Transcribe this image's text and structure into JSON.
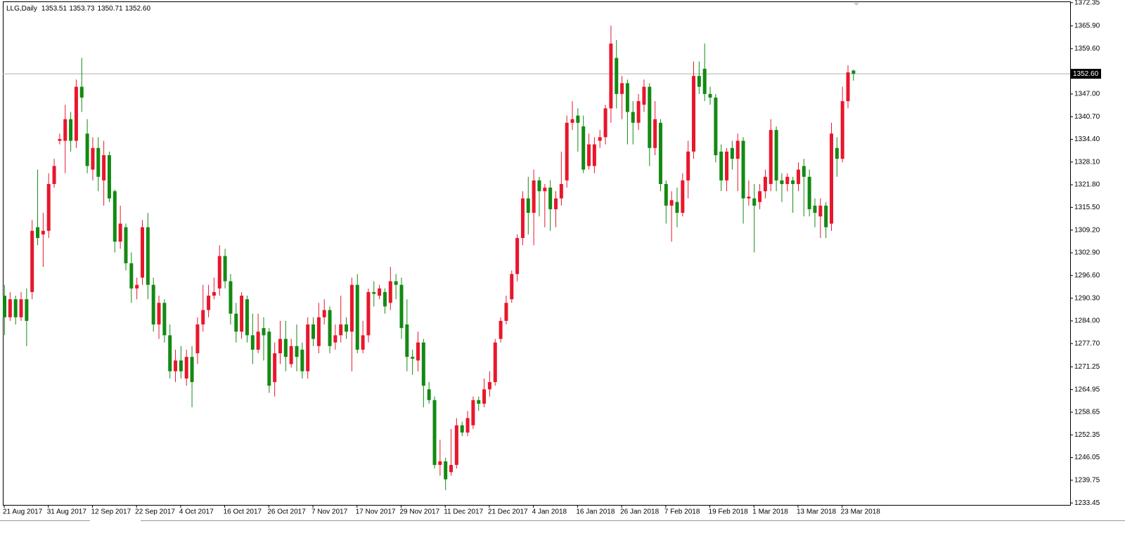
{
  "chart_data": {
    "type": "candlestick",
    "title": "LLG,Daily",
    "header_values": [
      "1353.51",
      "1353.73",
      "1350.71",
      "1352.60"
    ],
    "categories": [
      "21 Aug 2017",
      null,
      null,
      null,
      null,
      null,
      null,
      null,
      "31 Aug 2017",
      null,
      null,
      null,
      null,
      null,
      null,
      null,
      "12 Sep 2017",
      null,
      null,
      null,
      null,
      null,
      null,
      null,
      "22 Sep 2017",
      null,
      null,
      null,
      null,
      null,
      null,
      null,
      "4 Oct 2017",
      null,
      null,
      null,
      null,
      null,
      null,
      null,
      "16 Oct 2017",
      null,
      null,
      null,
      null,
      null,
      null,
      null,
      "26 Oct 2017",
      null,
      null,
      null,
      null,
      null,
      null,
      null,
      "7 Nov 2017",
      null,
      null,
      null,
      null,
      null,
      null,
      null,
      "17 Nov 2017",
      null,
      null,
      null,
      null,
      null,
      null,
      null,
      "29 Nov 2017",
      null,
      null,
      null,
      null,
      null,
      null,
      null,
      "11 Dec 2017",
      null,
      null,
      null,
      null,
      null,
      null,
      null,
      "21 Dec 2017",
      null,
      null,
      null,
      null,
      null,
      null,
      null,
      "4 Jan 2018",
      null,
      null,
      null,
      null,
      null,
      null,
      null,
      "16 Jan 2018",
      null,
      null,
      null,
      null,
      null,
      null,
      null,
      "26 Jan 2018",
      null,
      null,
      null,
      null,
      null,
      null,
      null,
      "7 Feb 2018",
      null,
      null,
      null,
      null,
      null,
      null,
      null,
      "19 Feb 2018",
      null,
      null,
      null,
      null,
      null,
      null,
      null,
      "1 Mar 2018",
      null,
      null,
      null,
      null,
      null,
      null,
      null,
      "13 Mar 2018",
      null,
      null,
      null,
      null,
      null,
      null,
      null,
      "23 Mar 2018",
      null,
      null
    ],
    "open": [
      1291,
      1285,
      1290,
      1285,
      1290,
      1292,
      1310,
      1308,
      1309,
      1322,
      1334,
      1334,
      1340,
      1334,
      1349,
      1336,
      1326,
      1332,
      1323,
      1330,
      1320,
      1306,
      1310,
      1300,
      1293,
      1296,
      1310,
      1294,
      1283,
      1289,
      1280,
      1270,
      1273,
      1268,
      1274,
      1275,
      1283,
      1287,
      1291,
      1293,
      1302,
      1295,
      1286,
      1281,
      1290,
      1280,
      1276,
      1282,
      1281,
      1267,
      1275,
      1279,
      1272,
      1277,
      1276,
      1270,
      1283,
      1277,
      1285,
      1287,
      1278,
      1280,
      1283,
      1281,
      1294,
      1276,
      1280,
      1292,
      1291,
      1292,
      1289,
      1295,
      1294,
      1283,
      1274,
      1273,
      1278,
      1265,
      1262,
      1244,
      1245,
      1242,
      1244,
      1255,
      1253,
      1255,
      1262,
      1261,
      1265,
      1267,
      1279,
      1284,
      1290,
      1297,
      1307,
      1318,
      1314,
      1323,
      1320,
      1321,
      1315,
      1318,
      1323,
      1339,
      1341,
      1338,
      1327,
      1327,
      1334,
      1335,
      1343,
      1357,
      1347,
      1350,
      1342,
      1339,
      1344,
      1349,
      1332,
      1339,
      1322,
      1316,
      1317,
      1314,
      1323,
      1331,
      1352,
      1354,
      1347,
      1346,
      1331,
      1323,
      1332,
      1329,
      1334,
      1318,
      1318,
      1317,
      1320,
      1322,
      1337,
      1323,
      1322,
      1323,
      1322,
      1327,
      1324,
      1316,
      1313,
      1316,
      1311,
      1332,
      1329,
      1345,
      1353.51
    ],
    "high": [
      1294,
      1292,
      1291,
      1292,
      1293,
      1312,
      1326,
      1314,
      1325,
      1329,
      1336,
      1344,
      1342,
      1351,
      1357,
      1340,
      1335,
      1335,
      1334,
      1331,
      1320.5,
      1316,
      1311,
      1303,
      1296,
      1312,
      1314,
      1296,
      1291,
      1290,
      1283,
      1276,
      1277,
      1276,
      1277,
      1285,
      1294,
      1294,
      1296,
      1305,
      1304,
      1297,
      1289,
      1292,
      1291,
      1286,
      1286,
      1285,
      1282,
      1278,
      1284,
      1284,
      1279,
      1283,
      1278,
      1285,
      1285,
      1289,
      1290,
      1288,
      1283,
      1291,
      1285,
      1296,
      1297,
      1284,
      1293,
      1295,
      1294,
      1293,
      1299,
      1297,
      1296,
      1290,
      1276,
      1281,
      1279,
      1267,
      1263,
      1251,
      1246,
      1254,
      1257,
      1256,
      1259,
      1263,
      1263,
      1268,
      1270,
      1279,
      1285,
      1291,
      1298,
      1308,
      1320,
      1324,
      1326,
      1324,
      1322,
      1323,
      1320,
      1331,
      1341,
      1345,
      1343,
      1341,
      1336,
      1335,
      1337,
      1344,
      1366,
      1362,
      1352,
      1351,
      1345,
      1347,
      1351,
      1350,
      1345,
      1340,
      1323,
      1320,
      1321,
      1325,
      1334,
      1356,
      1356,
      1361,
      1349,
      1347,
      1333,
      1332,
      1334,
      1336,
      1335,
      1323,
      1322,
      1322,
      1326,
      1340,
      1338,
      1325,
      1325,
      1324,
      1328,
      1329,
      1326,
      1318,
      1318,
      1317,
      1339,
      1335,
      1349,
      1355,
      1353.73
    ],
    "low": [
      1280,
      1284,
      1283,
      1284,
      1277,
      1290,
      1305,
      1299,
      1307,
      1321,
      1333,
      1325,
      1331,
      1332,
      1342,
      1325,
      1323,
      1320,
      1316,
      1317,
      1303,
      1304,
      1298,
      1289,
      1290,
      1294,
      1290,
      1281,
      1279,
      1278,
      1268,
      1267,
      1268,
      1266,
      1260,
      1272,
      1281,
      1285,
      1290,
      1291,
      1293,
      1283,
      1278,
      1279,
      1278,
      1272,
      1275,
      1273,
      1264,
      1263,
      1272,
      1270,
      1271,
      1270,
      1268,
      1268,
      1277,
      1275,
      1283,
      1275,
      1276,
      1278,
      1279,
      1270,
      1275,
      1275,
      1278,
      1288,
      1290,
      1286,
      1287,
      1290,
      1279,
      1270,
      1269,
      1270,
      1260,
      1261,
      1243,
      1241,
      1237,
      1241,
      1243,
      1252,
      1252,
      1254,
      1259,
      1260,
      1263,
      1266,
      1278,
      1283,
      1289,
      1295,
      1305,
      1308,
      1305,
      1313,
      1310,
      1309,
      1310,
      1316,
      1321,
      1337,
      1331,
      1325,
      1326,
      1325,
      1332,
      1333,
      1339,
      1343,
      1340,
      1333,
      1333,
      1337,
      1342,
      1327,
      1330,
      1320,
      1311,
      1306,
      1310,
      1313,
      1318,
      1329,
      1347,
      1345,
      1344,
      1328,
      1320,
      1320,
      1326,
      1320,
      1311,
      1316,
      1303,
      1315,
      1318,
      1320,
      1320,
      1317,
      1320,
      1314,
      1320,
      1313,
      1313,
      1310,
      1307,
      1307,
      1309,
      1324,
      1328,
      1343,
      1350.71
    ],
    "close": [
      1285,
      1290,
      1285,
      1290,
      1284,
      1309,
      1307,
      1309,
      1322,
      1327,
      1334.5,
      1340,
      1334,
      1349,
      1346,
      1327,
      1332,
      1324,
      1330,
      1318,
      1306,
      1311,
      1300,
      1293,
      1294,
      1310,
      1294,
      1283,
      1289,
      1280,
      1270,
      1273,
      1270,
      1274,
      1267,
      1283,
      1287,
      1291,
      1292,
      1302,
      1295,
      1286,
      1281,
      1291,
      1280,
      1276,
      1281,
      1280,
      1266,
      1275,
      1279,
      1274,
      1277,
      1274,
      1270,
      1283,
      1279,
      1285,
      1287,
      1277,
      1280,
      1283,
      1281,
      1294,
      1276,
      1280,
      1292,
      1291.5,
      1293,
      1288,
      1295,
      1294,
      1282,
      1274,
      1273.5,
      1278,
      1266,
      1262,
      1244,
      1245,
      1240,
      1244,
      1255,
      1253,
      1257,
      1262,
      1261,
      1265,
      1267,
      1278,
      1284,
      1289,
      1297,
      1307,
      1318,
      1314,
      1323,
      1320,
      1321,
      1315,
      1318,
      1322,
      1339,
      1340,
      1339,
      1326,
      1333,
      1333,
      1335,
      1343,
      1361,
      1347,
      1350,
      1342,
      1339,
      1345,
      1349,
      1332,
      1340,
      1322,
      1316,
      1317.5,
      1314,
      1323,
      1331,
      1352,
      1349,
      1347,
      1346,
      1330,
      1323,
      1331,
      1329,
      1334,
      1318,
      1318.5,
      1316,
      1320,
      1324,
      1337,
      1323,
      1322,
      1324,
      1322,
      1326,
      1324,
      1315,
      1314,
      1316,
      1310,
      1336,
      1329,
      1345,
      1353,
      1352.6
    ],
    "up_color": "#e8172c",
    "down_color": "#138a13",
    "ylim": [
      1232.9,
      1372.7
    ],
    "yticks": [
      1372.35,
      {
        "value": 1365.9,
        "label": "1365.90"
      },
      {
        "value": 1359.6,
        "label": "1359.60"
      },
      {
        "value": 1347,
        "label": "1347.00"
      },
      {
        "value": 1340.7,
        "label": "1340.70"
      },
      {
        "value": 1334.4,
        "label": "1334.40"
      },
      {
        "value": 1328.1,
        "label": "1328.10"
      },
      {
        "value": 1321.8,
        "label": "1321.80"
      },
      {
        "value": 1315.5,
        "label": "1315.50"
      },
      {
        "value": 1309.2,
        "label": "1309.20"
      },
      {
        "value": 1302.9,
        "label": "1302.90"
      },
      {
        "value": 1296.6,
        "label": "1296.60"
      },
      {
        "value": 1290.3,
        "label": "1290.30"
      },
      {
        "value": 1284,
        "label": "1284.00"
      },
      {
        "value": 1277.7,
        "label": "1277.70"
      },
      1271.25,
      1264.95,
      1258.65,
      1252.35,
      1246.05,
      1239.75,
      1233.45
    ],
    "grid": false,
    "current_price": {
      "value": 1352.6,
      "label": "1352.60"
    }
  }
}
